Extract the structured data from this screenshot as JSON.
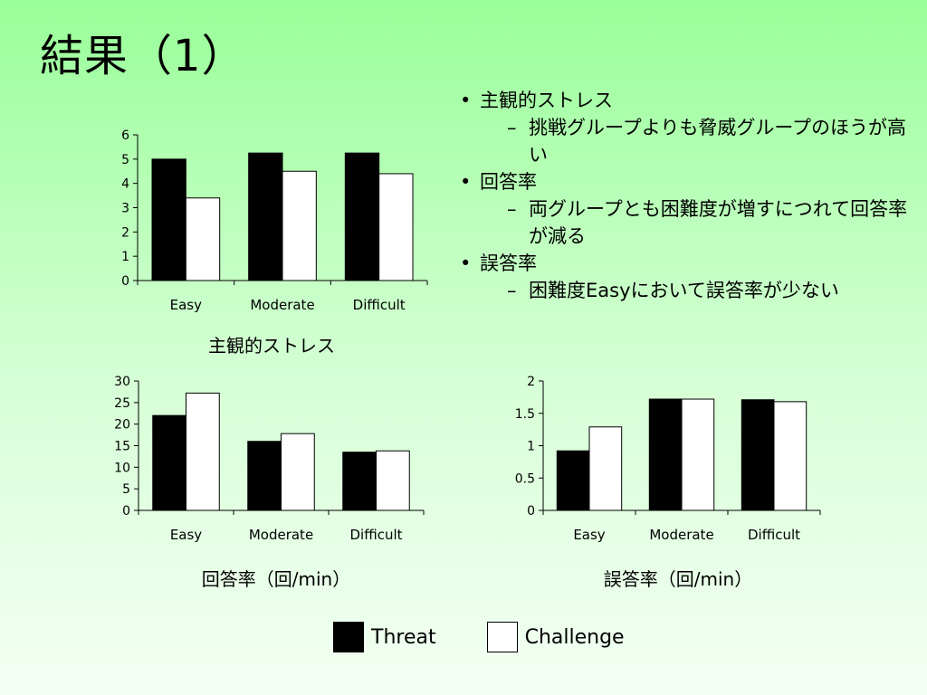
{
  "slide": {
    "title": "結果（1）",
    "bullets": [
      {
        "level": 1,
        "text": "主観的ストレス"
      },
      {
        "level": 2,
        "text": "挑戦グループよりも脅威グループのほうが高い"
      },
      {
        "level": 1,
        "text": "回答率"
      },
      {
        "level": 2,
        "text": "両グループとも困難度が増すにつれて回答率が減る"
      },
      {
        "level": 1,
        "text": "誤答率"
      },
      {
        "level": 2,
        "text": "困難度Easyにおいて誤答率が少ない"
      }
    ],
    "legend": [
      {
        "label": "Threat",
        "color": "#000000"
      },
      {
        "label": "Challenge",
        "color": "#ffffff"
      }
    ]
  },
  "chart_data": [
    {
      "type": "bar",
      "title": "主観的ストレス",
      "categories": [
        "Easy",
        "Moderate",
        "Difficult"
      ],
      "series": [
        {
          "name": "Threat",
          "color": "#000000",
          "values": [
            5.0,
            5.25,
            5.25
          ]
        },
        {
          "name": "Challenge",
          "color": "#ffffff",
          "values": [
            3.4,
            4.5,
            4.4
          ]
        }
      ],
      "yticks": [
        "0",
        "1",
        "2",
        "3",
        "4",
        "5",
        "6"
      ],
      "ylim": [
        0,
        6
      ]
    },
    {
      "type": "bar",
      "title": "回答率（回/min）",
      "categories": [
        "Easy",
        "Moderate",
        "Difficult"
      ],
      "series": [
        {
          "name": "Threat",
          "color": "#000000",
          "values": [
            22,
            16,
            13.5
          ]
        },
        {
          "name": "Challenge",
          "color": "#ffffff",
          "values": [
            27.2,
            17.8,
            13.8
          ]
        }
      ],
      "yticks": [
        "0",
        "5",
        "10",
        "15",
        "20",
        "25",
        "30"
      ],
      "ylim": [
        0,
        30
      ]
    },
    {
      "type": "bar",
      "title": "誤答率（回/min）",
      "categories": [
        "Easy",
        "Moderate",
        "Difficult"
      ],
      "series": [
        {
          "name": "Threat",
          "color": "#000000",
          "values": [
            0.92,
            1.72,
            1.71
          ]
        },
        {
          "name": "Challenge",
          "color": "#ffffff",
          "values": [
            1.29,
            1.72,
            1.68
          ]
        }
      ],
      "yticks": [
        "0",
        "0.5",
        "1",
        "1.5",
        "2"
      ],
      "ylim": [
        0,
        2
      ]
    }
  ]
}
